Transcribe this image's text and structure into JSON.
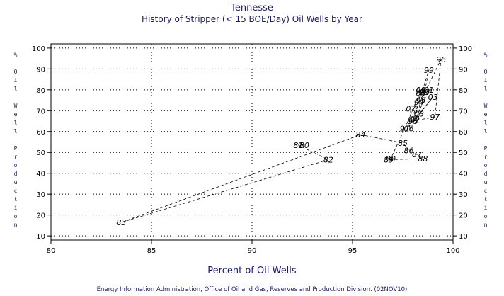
{
  "header": {
    "title": "Tennesse",
    "subtitle": "History of Stripper (< 15 BOE/Day) Oil Wells by Year"
  },
  "footer": "Energy Information Administration, Office of Oil and Gas, Reserves and Production Division. (02NOV10)",
  "chart_data": {
    "type": "scatter",
    "xlabel": "Percent of Oil Wells",
    "ylabel": "% Oil Well Production",
    "xlim": [
      80,
      100
    ],
    "ylim": [
      8,
      102
    ],
    "xticks": [
      80,
      85,
      90,
      95,
      100
    ],
    "yticks": [
      10,
      20,
      30,
      40,
      50,
      60,
      70,
      80,
      90,
      100
    ],
    "grid": true,
    "connect_order": "chronological",
    "points": [
      {
        "label": "80",
        "x": 92.6,
        "y": 53.5
      },
      {
        "label": "81",
        "x": 92.3,
        "y": 53.5
      },
      {
        "label": "82",
        "x": 93.8,
        "y": 46.5
      },
      {
        "label": "83",
        "x": 83.5,
        "y": 16.5
      },
      {
        "label": "84",
        "x": 95.4,
        "y": 58.5
      },
      {
        "label": "85",
        "x": 97.5,
        "y": 54.5
      },
      {
        "label": "86",
        "x": 97.8,
        "y": 51.0
      },
      {
        "label": "87",
        "x": 98.2,
        "y": 49.0
      },
      {
        "label": "88",
        "x": 98.5,
        "y": 47.0
      },
      {
        "label": "89",
        "x": 96.8,
        "y": 46.5
      },
      {
        "label": "90",
        "x": 96.9,
        "y": 47.0
      },
      {
        "label": "91",
        "x": 97.6,
        "y": 61.5
      },
      {
        "label": "92",
        "x": 98.4,
        "y": 79.5
      },
      {
        "label": "93",
        "x": 98.6,
        "y": 79.0
      },
      {
        "label": "94",
        "x": 98.3,
        "y": 74.0
      },
      {
        "label": "95",
        "x": 98.4,
        "y": 75.0
      },
      {
        "label": "96",
        "x": 99.4,
        "y": 94.5
      },
      {
        "label": "97",
        "x": 99.1,
        "y": 67.0
      },
      {
        "label": "98",
        "x": 98.0,
        "y": 65.0
      },
      {
        "label": "99",
        "x": 98.8,
        "y": 89.5
      },
      {
        "label": "00",
        "x": 98.6,
        "y": 79.5
      },
      {
        "label": "01",
        "x": 98.8,
        "y": 80.0
      },
      {
        "label": "02",
        "x": 98.1,
        "y": 65.5
      },
      {
        "label": "03",
        "x": 99.0,
        "y": 76.5
      },
      {
        "label": "04",
        "x": 98.1,
        "y": 66.0
      },
      {
        "label": "05",
        "x": 98.4,
        "y": 78.5
      },
      {
        "label": "06",
        "x": 97.8,
        "y": 61.5
      },
      {
        "label": "07",
        "x": 97.9,
        "y": 71.0
      },
      {
        "label": "08",
        "x": 98.3,
        "y": 68.5
      },
      {
        "label": "09",
        "x": 98.4,
        "y": 80.0
      }
    ]
  }
}
